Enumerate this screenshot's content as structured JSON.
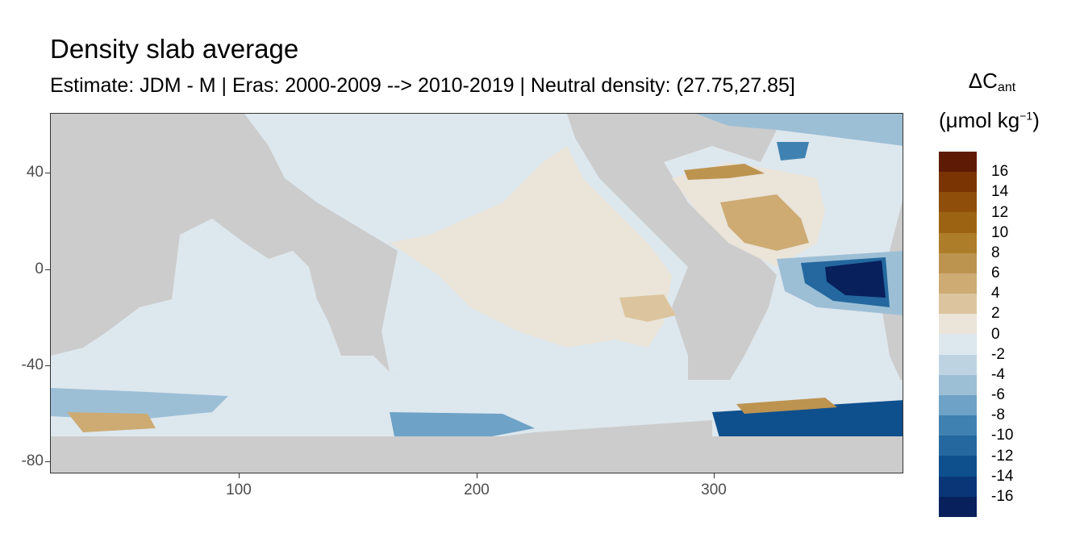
{
  "title": "Density slab average",
  "subtitle": "Estimate: JDM - M | Eras: 2000-2009 --> 2010-2019 | Neutral density: (27.75,27.85]",
  "legend": {
    "title_main": "ΔC",
    "title_sub": "ant",
    "unit_main": "(μmol kg",
    "unit_sup": "−1",
    "unit_close": ")",
    "labels": [
      "16",
      "14",
      "12",
      "10",
      "8",
      "6",
      "4",
      "2",
      "0",
      "-2",
      "-4",
      "-6",
      "-8",
      "-10",
      "-12",
      "-14",
      "-16"
    ],
    "colors": [
      "#5f1a05",
      "#7a3404",
      "#8f4e0a",
      "#9c6412",
      "#ae7d29",
      "#bd9350",
      "#cdab73",
      "#dcc59e",
      "#eae4d9",
      "#dde7ee",
      "#bed3e2",
      "#9dbfd6",
      "#6ea2c6",
      "#3f82b1",
      "#24689f",
      "#0e4f8d",
      "#0a3677",
      "#08205c"
    ]
  },
  "axes": {
    "y_ticks": [
      "40",
      "0",
      "-40",
      "-80"
    ],
    "x_ticks": [
      "100",
      "200",
      "300"
    ]
  },
  "colors": {
    "land": "#cccccc",
    "neutral_ocean": "#dde7ee",
    "positive": "#eae4d9",
    "strong_negative": "#08205c"
  }
}
